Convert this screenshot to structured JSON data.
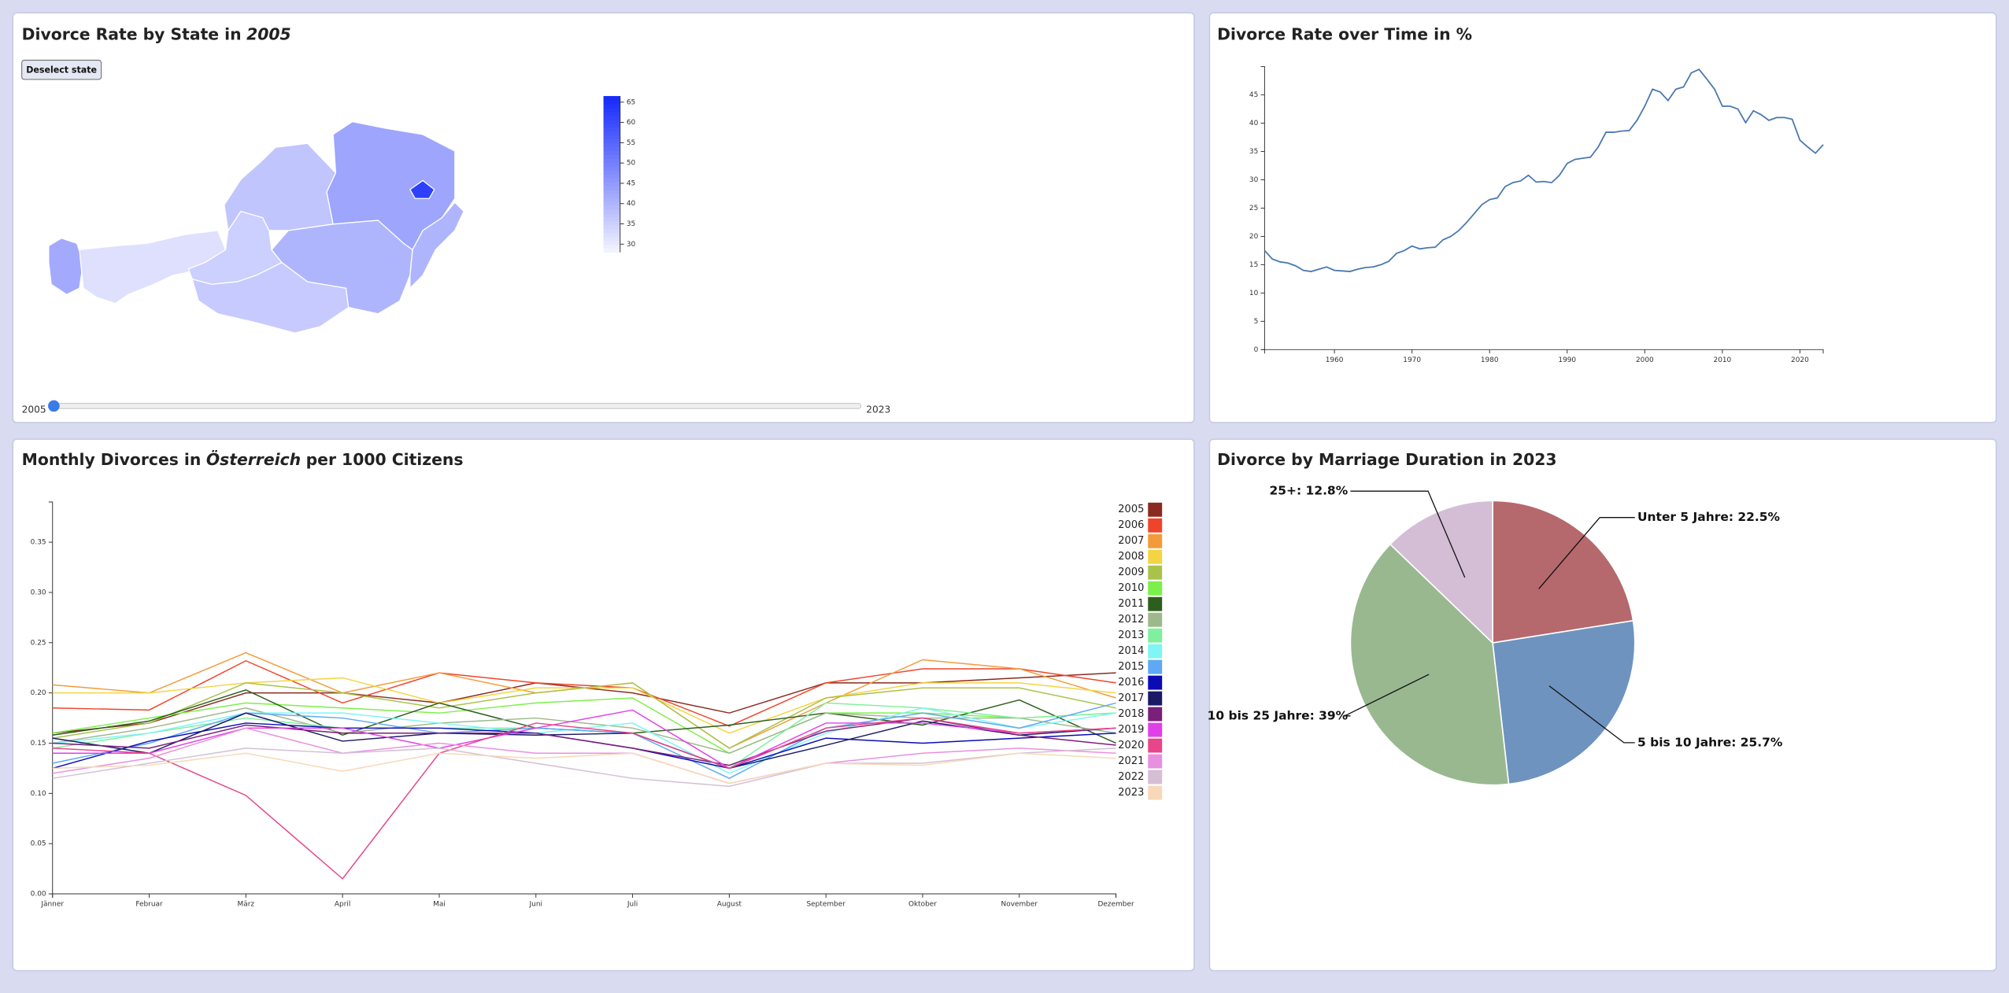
{
  "chart_data": [
    {
      "type": "choropleth",
      "title": "Divorce Rate by State in",
      "title_em": "2005",
      "values": [
        42,
        32,
        35,
        36,
        40,
        37,
        43,
        62,
        40
      ],
      "colorbar_lim": [
        28,
        66.5
      ],
      "colorbar_ticks": [
        30,
        35,
        40,
        45,
        50,
        55,
        60,
        65
      ]
    },
    {
      "type": "line",
      "title": "Divorce Rate over Time in %",
      "x": [
        1951,
        1952,
        1953,
        1954,
        1955,
        1956,
        1957,
        1958,
        1959,
        1960,
        1961,
        1962,
        1963,
        1964,
        1965,
        1966,
        1967,
        1968,
        1969,
        1970,
        1971,
        1972,
        1973,
        1974,
        1975,
        1976,
        1977,
        1978,
        1979,
        1980,
        1981,
        1982,
        1983,
        1984,
        1985,
        1986,
        1987,
        1988,
        1989,
        1990,
        1991,
        1992,
        1993,
        1994,
        1995,
        1996,
        1997,
        1998,
        1999,
        2000,
        2001,
        2002,
        2003,
        2004,
        2005,
        2006,
        2007,
        2008,
        2009,
        2010,
        2011,
        2012,
        2013,
        2014,
        2015,
        2016,
        2017,
        2018,
        2019,
        2020,
        2021,
        2022,
        2023
      ],
      "values": [
        17.5,
        16,
        15.5,
        15.3,
        14.8,
        14,
        13.8,
        14.2,
        14.6,
        14,
        13.9,
        13.8,
        14.2,
        14.5,
        14.6,
        15,
        15.6,
        17,
        17.5,
        18.3,
        17.8,
        18,
        18.1,
        19.4,
        20,
        21,
        22.4,
        24,
        25.6,
        26.5,
        26.8,
        28.8,
        29.5,
        29.8,
        30.8,
        29.6,
        29.7,
        29.5,
        30.8,
        32.9,
        33.6,
        33.8,
        34,
        35.8,
        38.4,
        38.4,
        38.6,
        38.7,
        40.5,
        43,
        46,
        45.5,
        44,
        46,
        46.4,
        48.9,
        49.5,
        47.8,
        46,
        43,
        43,
        42.5,
        40.1,
        42.2,
        41.5,
        40.5,
        41,
        41,
        40.7,
        37,
        35.8,
        34.7,
        36.2
      ],
      "color": "#4a78b0",
      "xlim": [
        1951,
        2023
      ],
      "xticks": [
        1960,
        1970,
        1980,
        1990,
        2000,
        2010,
        2020
      ],
      "ylim": [
        0,
        50
      ],
      "yticks": [
        0,
        5,
        10,
        15,
        20,
        25,
        30,
        35,
        40,
        45
      ]
    },
    {
      "type": "multiline",
      "title": "Monthly Divorces in",
      "title_em": "Österreich",
      "title_end": "per 1000 Citizens",
      "categories": [
        "Jänner",
        "Februar",
        "März",
        "April",
        "Mai",
        "Juni",
        "Juli",
        "August",
        "September",
        "Oktober",
        "November",
        "Dezember"
      ],
      "ylim": [
        0,
        0.39
      ],
      "yticks": [
        {
          "value": 0,
          "label": "0.00"
        },
        {
          "value": 0.05,
          "label": "0.05"
        },
        {
          "value": 0.1,
          "label": "0.10"
        },
        {
          "value": 0.15,
          "label": "0.15"
        },
        {
          "value": 0.2,
          "label": "0.20"
        },
        {
          "value": 0.25,
          "label": "0.25"
        },
        {
          "value": 0.3,
          "label": "0.30"
        },
        {
          "value": 0.35,
          "label": "0.35"
        }
      ],
      "series": [
        {
          "name": "2005",
          "color": "#8b2a1f",
          "values": [
            0.16,
            0.17,
            0.2,
            0.2,
            0.19,
            0.21,
            0.2,
            0.18,
            0.21,
            0.21,
            0.215,
            0.22
          ]
        },
        {
          "name": "2006",
          "color": "#f0442a",
          "values": [
            0.185,
            0.183,
            0.232,
            0.19,
            0.22,
            0.21,
            0.205,
            0.167,
            0.21,
            0.224,
            0.224,
            0.21
          ]
        },
        {
          "name": "2007",
          "color": "#f39b3a",
          "values": [
            0.208,
            0.2,
            0.24,
            0.2,
            0.22,
            0.2,
            0.21,
            0.145,
            0.19,
            0.233,
            0.224,
            0.195
          ]
        },
        {
          "name": "2008",
          "color": "#f5d442",
          "values": [
            0.2,
            0.2,
            0.21,
            0.215,
            0.19,
            0.205,
            0.205,
            0.16,
            0.195,
            0.21,
            0.21,
            0.2
          ]
        },
        {
          "name": "2009",
          "color": "#a9c24a",
          "values": [
            0.155,
            0.17,
            0.21,
            0.2,
            0.185,
            0.2,
            0.21,
            0.145,
            0.195,
            0.205,
            0.205,
            0.185
          ]
        },
        {
          "name": "2010",
          "color": "#7cf04a",
          "values": [
            0.16,
            0.175,
            0.19,
            0.185,
            0.18,
            0.19,
            0.195,
            0.14,
            0.18,
            0.18,
            0.175,
            0.18
          ]
        },
        {
          "name": "2011",
          "color": "#2e5e1e",
          "values": [
            0.158,
            0.172,
            0.203,
            0.158,
            0.19,
            0.165,
            0.16,
            0.168,
            0.18,
            0.168,
            0.193,
            0.15
          ]
        },
        {
          "name": "2012",
          "color": "#9db88d",
          "values": [
            0.15,
            0.165,
            0.185,
            0.16,
            0.17,
            0.175,
            0.165,
            0.14,
            0.18,
            0.175,
            0.175,
            0.16
          ]
        },
        {
          "name": "2013",
          "color": "#7ef09e",
          "values": [
            0.145,
            0.16,
            0.175,
            0.165,
            0.165,
            0.165,
            0.16,
            0.125,
            0.19,
            0.185,
            0.175,
            0.18
          ]
        },
        {
          "name": "2014",
          "color": "#7ff5f5",
          "values": [
            0.15,
            0.16,
            0.18,
            0.18,
            0.17,
            0.16,
            0.17,
            0.12,
            0.16,
            0.185,
            0.165,
            0.18
          ]
        },
        {
          "name": "2015",
          "color": "#5fa8f5",
          "values": [
            0.13,
            0.15,
            0.18,
            0.175,
            0.16,
            0.165,
            0.16,
            0.115,
            0.165,
            0.18,
            0.165,
            0.19
          ]
        },
        {
          "name": "2016",
          "color": "#0b0bb5",
          "values": [
            0.125,
            0.152,
            0.17,
            0.165,
            0.165,
            0.16,
            0.145,
            0.125,
            0.155,
            0.15,
            0.155,
            0.16
          ]
        },
        {
          "name": "2017",
          "color": "#1a1a66",
          "values": [
            0.155,
            0.14,
            0.18,
            0.152,
            0.16,
            0.158,
            0.16,
            0.125,
            0.148,
            0.172,
            0.158,
            0.165
          ]
        },
        {
          "name": "2018",
          "color": "#7a1f7a",
          "values": [
            0.15,
            0.145,
            0.168,
            0.16,
            0.16,
            0.16,
            0.145,
            0.128,
            0.162,
            0.175,
            0.158,
            0.148
          ]
        },
        {
          "name": "2019",
          "color": "#e040e8",
          "values": [
            0.14,
            0.14,
            0.165,
            0.165,
            0.145,
            0.165,
            0.183,
            0.125,
            0.17,
            0.17,
            0.16,
            0.165
          ]
        },
        {
          "name": "2020",
          "color": "#e8458a",
          "values": [
            0.145,
            0.14,
            0.098,
            0.015,
            0.14,
            0.17,
            0.16,
            0.125,
            0.165,
            0.175,
            0.16,
            0.165
          ]
        },
        {
          "name": "2021",
          "color": "#e890e0",
          "values": [
            0.12,
            0.135,
            0.165,
            0.14,
            0.15,
            0.14,
            0.14,
            0.11,
            0.13,
            0.14,
            0.145,
            0.14
          ]
        },
        {
          "name": "2022",
          "color": "#d4bfd4",
          "values": [
            0.115,
            0.13,
            0.145,
            0.14,
            0.145,
            0.13,
            0.115,
            0.107,
            0.13,
            0.13,
            0.14,
            0.145
          ]
        },
        {
          "name": "2023",
          "color": "#f8d8b8",
          "values": [
            0.125,
            0.128,
            0.14,
            0.122,
            0.14,
            0.135,
            0.14,
            0.11,
            0.13,
            0.128,
            0.14,
            0.135
          ]
        }
      ]
    },
    {
      "type": "pie",
      "title": "Divorce by Marriage Duration in 2023",
      "values": [
        22.5,
        25.7,
        39,
        12.8
      ],
      "value_labels": [
        "Unter 5 Jahre: 22.5%",
        "5 bis 10 Jahre: 25.7%",
        "10 bis 25 Jahre: 39%",
        "25+: 12.8%"
      ],
      "colors": [
        "#b5696c",
        "#6e93bf",
        "#99b890",
        "#d3bed6"
      ]
    }
  ],
  "controls": {
    "button": "Deselect state",
    "slider": {
      "min": 2005,
      "max": 2023,
      "value": 2005
    }
  }
}
